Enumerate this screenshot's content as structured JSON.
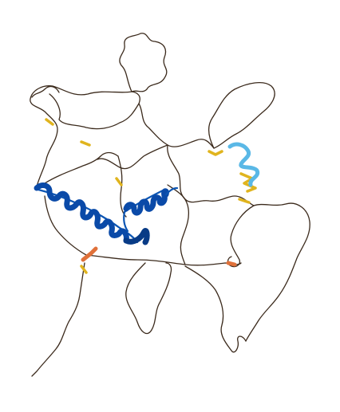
{
  "image": {
    "subject": "protein-structure",
    "background_color": "#ffffff",
    "colors": {
      "coil": "#3b2a1c",
      "helix_very_high": "#0a4aa8",
      "helix_confident": "#5ab8e6",
      "segment_low": "#e0b41e",
      "segment_very_low": "#e0713a"
    }
  }
}
